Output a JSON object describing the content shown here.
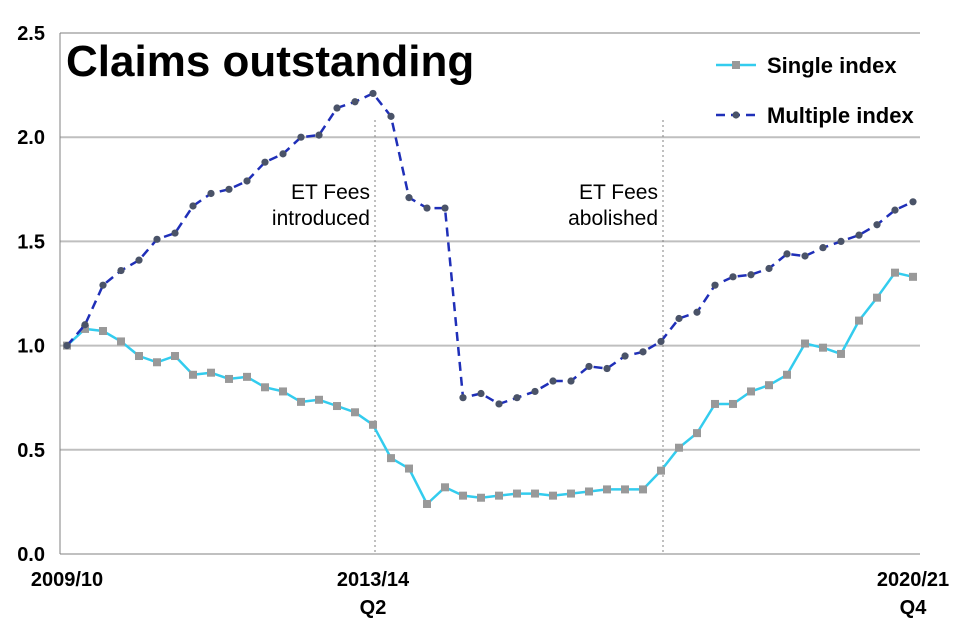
{
  "chart_data": {
    "type": "line",
    "title": "Claims outstanding",
    "xlabel": "",
    "ylabel": "",
    "ylim": [
      0,
      2.5
    ],
    "yticks": [
      "0.0",
      "0.5",
      "1.0",
      "1.5",
      "2.0",
      "2.5"
    ],
    "ytick_values": [
      0,
      0.5,
      1.0,
      1.5,
      2.0,
      2.5
    ],
    "x_tick_labels": [
      {
        "index": 0,
        "lines": [
          "2009/10"
        ]
      },
      {
        "index": 17,
        "lines": [
          "2013/14",
          "Q2"
        ]
      },
      {
        "index": 47,
        "lines": [
          "2020/21",
          "Q4"
        ]
      }
    ],
    "legend_position": "top-right",
    "annotations": [
      {
        "index": 17,
        "lines": [
          "ET Fees",
          "introduced"
        ]
      },
      {
        "index": 33,
        "lines": [
          "ET Fees",
          "abolished"
        ]
      }
    ],
    "series": [
      {
        "name": "Single index",
        "color": "#33CCEE",
        "marker_color": "#999999",
        "style": "solid",
        "marker": "square",
        "values": [
          1.0,
          1.08,
          1.07,
          1.02,
          0.95,
          0.92,
          0.95,
          0.86,
          0.87,
          0.84,
          0.85,
          0.8,
          0.78,
          0.73,
          0.74,
          0.71,
          0.68,
          0.62,
          0.46,
          0.41,
          0.24,
          0.32,
          0.28,
          0.27,
          0.28,
          0.29,
          0.29,
          0.28,
          0.29,
          0.3,
          0.31,
          0.31,
          0.31,
          0.4,
          0.51,
          0.58,
          0.72,
          0.72,
          0.78,
          0.81,
          0.86,
          1.01,
          0.99,
          0.96,
          1.12,
          1.23,
          1.35,
          1.33
        ]
      },
      {
        "name": "Multiple index",
        "color": "#1F2FB8",
        "marker_color": "#4A5368",
        "style": "dashed",
        "marker": "circle",
        "values": [
          1.0,
          1.1,
          1.29,
          1.36,
          1.41,
          1.51,
          1.54,
          1.67,
          1.73,
          1.75,
          1.79,
          1.88,
          1.92,
          2.0,
          2.01,
          2.14,
          2.17,
          2.21,
          2.1,
          1.71,
          1.66,
          1.66,
          0.75,
          0.77,
          0.72,
          0.75,
          0.78,
          0.83,
          0.83,
          0.9,
          0.89,
          0.95,
          0.97,
          1.02,
          1.13,
          1.16,
          1.29,
          1.33,
          1.34,
          1.37,
          1.44,
          1.43,
          1.47,
          1.5,
          1.53,
          1.58,
          1.65,
          1.69
        ]
      }
    ]
  }
}
